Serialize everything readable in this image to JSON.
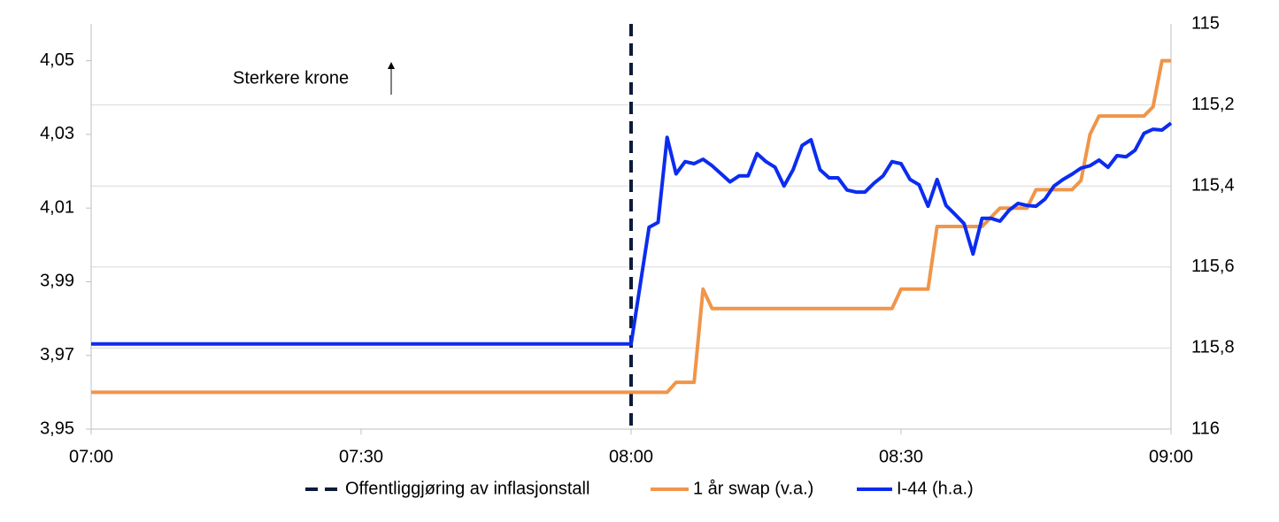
{
  "chart_data": {
    "type": "line",
    "annotation": "Sterkere krone",
    "xlim": [
      "07:00",
      "09:00"
    ],
    "xticks": [
      "07:00",
      "07:30",
      "08:00",
      "08:30",
      "09:00"
    ],
    "ylim": [
      3.95,
      4.06
    ],
    "yticks": [
      {
        "value": 3.95,
        "label": "3,95"
      },
      {
        "value": 3.97,
        "label": "3,97"
      },
      {
        "value": 3.99,
        "label": "3,99"
      },
      {
        "value": 4.01,
        "label": "4,01"
      },
      {
        "value": 4.03,
        "label": "4,03"
      },
      {
        "value": 4.05,
        "label": "4,05"
      }
    ],
    "y2lim": [
      116,
      115
    ],
    "y2ticks": [
      115,
      {
        "value": 115.2,
        "label": "115,2"
      },
      {
        "value": 115.4,
        "label": "115,4"
      },
      {
        "value": 115.6,
        "label": "115,6"
      },
      {
        "value": 115.8,
        "label": "115,8"
      },
      116
    ],
    "grid": true,
    "vline": {
      "name": "Offentliggjøring av inflasjonstall",
      "color": "#0c1b3a",
      "x": "08:00"
    },
    "series": [
      {
        "name": "1 år swap (v.a.)",
        "color": "#f0954a",
        "axis": "y",
        "x": [
          "07:00",
          "08:04",
          "08:05",
          "08:07",
          "08:08",
          "08:09",
          "08:29",
          "08:30",
          "08:33",
          "08:34",
          "08:39",
          "08:41",
          "08:44",
          "08:45",
          "08:49",
          "08:50",
          "08:51",
          "08:52",
          "08:57",
          "08:58",
          "08:59",
          "09:00"
        ],
        "values": [
          3.96,
          3.96,
          3.9627,
          3.9627,
          3.988,
          3.9827,
          3.9827,
          3.988,
          3.988,
          4.005,
          4.005,
          4.01,
          4.01,
          4.015,
          4.015,
          4.0175,
          4.03,
          4.035,
          4.035,
          4.0375,
          4.05,
          4.05
        ]
      },
      {
        "name": "I-44 (h.a.)",
        "color": "#0b2cf0",
        "axis": "y2",
        "x": [
          "07:00",
          "08:00",
          "08:02",
          "08:03",
          "08:04",
          "08:05",
          "08:06",
          "08:07",
          "08:08",
          "08:09",
          "08:10",
          "08:11",
          "08:12",
          "08:13",
          "08:14",
          "08:15",
          "08:16",
          "08:17",
          "08:18",
          "08:19",
          "08:20",
          "08:21",
          "08:22",
          "08:23",
          "08:24",
          "08:25",
          "08:26",
          "08:27",
          "08:28",
          "08:29",
          "08:30",
          "08:31",
          "08:32",
          "08:33",
          "08:34",
          "08:35",
          "08:36",
          "08:37",
          "08:38",
          "08:39",
          "08:40",
          "08:41",
          "08:42",
          "08:43",
          "08:44",
          "08:45",
          "08:46",
          "08:47",
          "08:48",
          "08:49",
          "08:50",
          "08:51",
          "08:52",
          "08:53",
          "08:54",
          "08:55",
          "08:56",
          "08:57",
          "08:58",
          "08:59",
          "09:00"
        ],
        "values": [
          115.79,
          115.79,
          115.502,
          115.49,
          115.28,
          115.37,
          115.34,
          115.345,
          115.334,
          115.35,
          115.37,
          115.39,
          115.375,
          115.375,
          115.32,
          115.34,
          115.354,
          115.4,
          115.36,
          115.3,
          115.286,
          115.36,
          115.38,
          115.38,
          115.41,
          115.415,
          115.415,
          115.393,
          115.375,
          115.34,
          115.345,
          115.384,
          115.397,
          115.45,
          115.384,
          115.448,
          115.47,
          115.493,
          115.568,
          115.48,
          115.48,
          115.487,
          115.46,
          115.443,
          115.448,
          115.45,
          115.432,
          115.4,
          115.384,
          115.371,
          115.356,
          115.35,
          115.336,
          115.354,
          115.325,
          115.328,
          115.312,
          115.27,
          115.26,
          115.262,
          115.245
        ]
      }
    ]
  }
}
